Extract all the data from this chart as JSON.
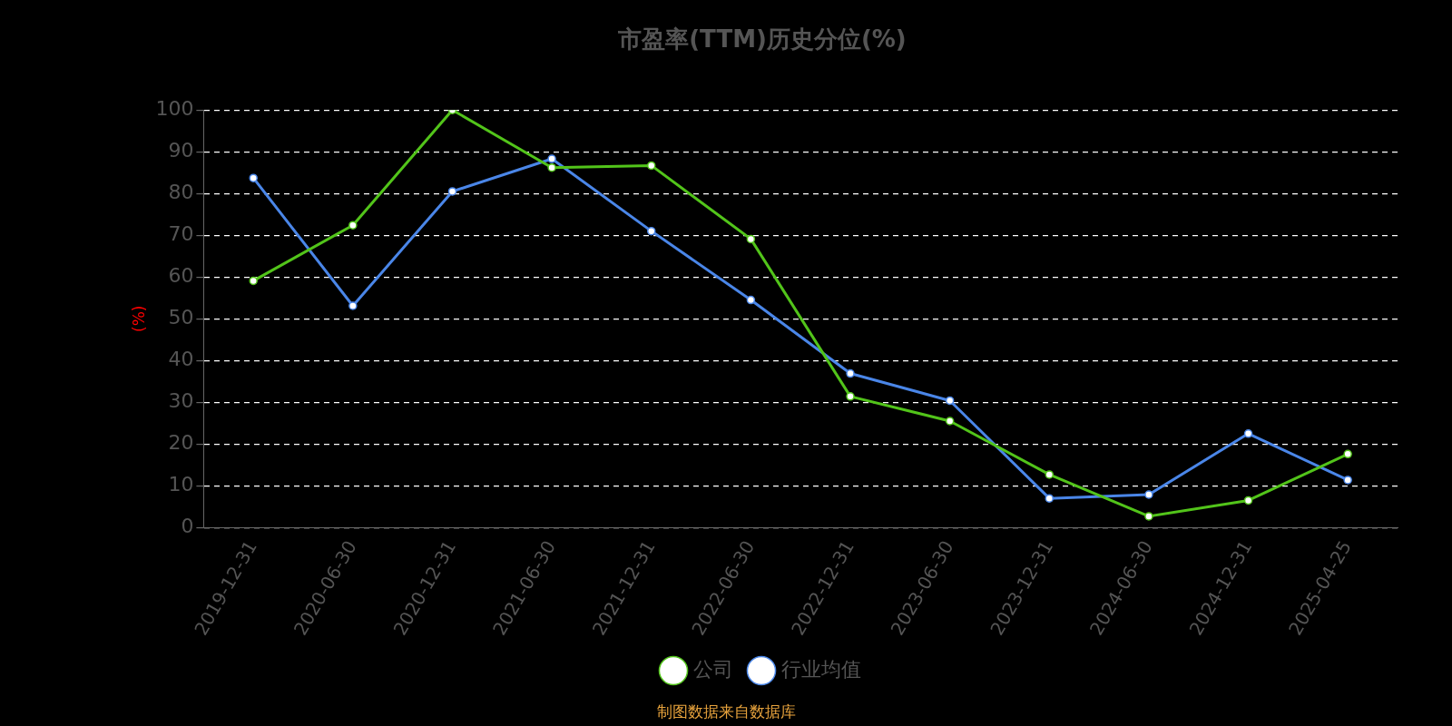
{
  "chart_data": {
    "type": "line",
    "title": "市盈率(TTM)历史分位(%)",
    "ylabel": "(%)",
    "categories": [
      "2019-12-31",
      "2020-06-30",
      "2020-12-31",
      "2021-06-30",
      "2021-12-31",
      "2022-06-30",
      "2022-12-31",
      "2023-06-30",
      "2023-12-31",
      "2024-06-30",
      "2024-12-31",
      "2025-04-25"
    ],
    "series": [
      {
        "name": "公司",
        "color": "#52c41a",
        "values": [
          59.1,
          72.4,
          100,
          86.2,
          86.7,
          69.1,
          31.4,
          25.5,
          12.7,
          2.7,
          6.5,
          17.6
        ]
      },
      {
        "name": "行业均值",
        "color": "#4a86e8",
        "values": [
          83.7,
          53.1,
          80.5,
          88.3,
          71.0,
          54.5,
          36.9,
          30.4,
          7.0,
          7.9,
          22.5,
          11.4
        ]
      }
    ],
    "ylim": [
      0,
      100
    ],
    "yticks": [
      0,
      10,
      20,
      30,
      40,
      50,
      60,
      70,
      80,
      90,
      100
    ],
    "grid": "y",
    "legend": "bottom",
    "marker": "circle",
    "line_style": "solid",
    "annotations": [
      "制图数据来自数据库"
    ]
  }
}
